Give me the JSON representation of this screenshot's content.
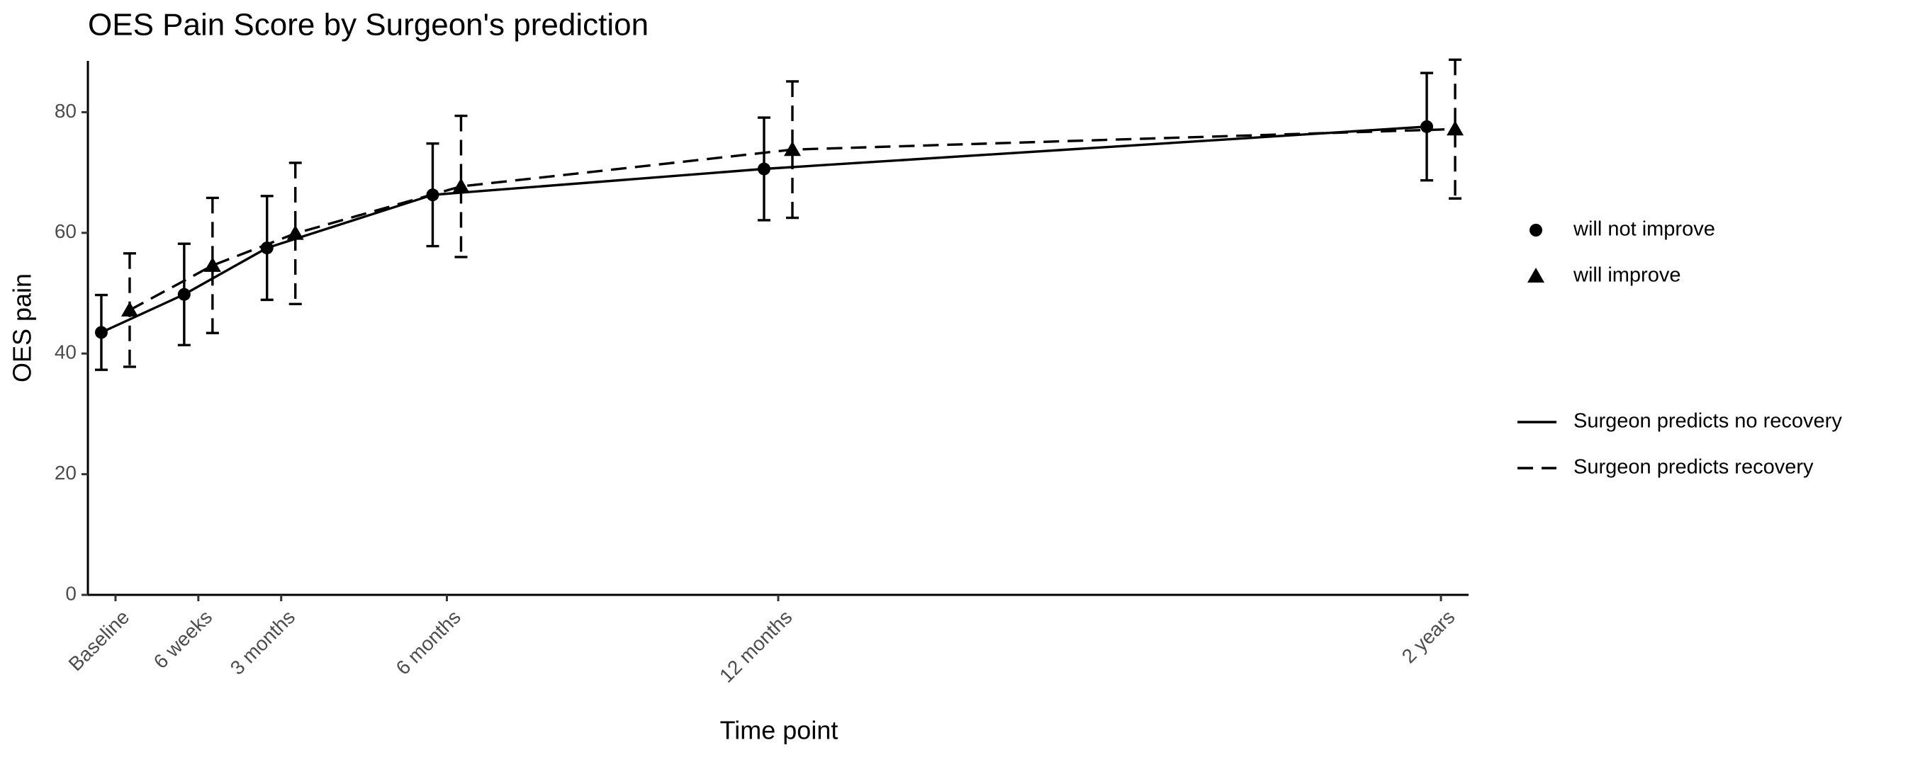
{
  "chart_data": {
    "type": "line_errorbar",
    "title": "OES Pain Score by Surgeon's prediction",
    "x_label": "Time point",
    "y_label": "OES pain",
    "x": [
      0,
      1.5,
      3,
      6,
      12,
      24
    ],
    "xlim": [
      -0.5,
      24.5
    ],
    "xticks": [
      {
        "value": 0,
        "label": "Baseline"
      },
      {
        "value": 1.5,
        "label": "6 weeks"
      },
      {
        "value": 3,
        "label": "3 months"
      },
      {
        "value": 6,
        "label": "6 months"
      },
      {
        "value": 12,
        "label": "12 months"
      },
      {
        "value": 24,
        "label": "2 years"
      }
    ],
    "ylim": [
      0,
      88.5
    ],
    "yticks": [
      0,
      20,
      40,
      60,
      80
    ],
    "grid": false,
    "legend": "right",
    "series": [
      {
        "name": "will not improve",
        "line_label": "Surgeon predicts no recovery",
        "marker": "circle",
        "dash": "solid",
        "color": "#000000",
        "values": [
          43.5,
          49.8,
          57.5,
          66.3,
          70.6,
          77.6
        ],
        "errors": [
          6.2,
          8.4,
          8.6,
          8.5,
          8.5,
          8.9
        ]
      },
      {
        "name": "will improve",
        "line_label": "Surgeon predicts recovery",
        "marker": "triangle",
        "dash": "dashed",
        "color": "#000000",
        "values": [
          47.2,
          54.6,
          59.9,
          67.7,
          73.8,
          77.2
        ],
        "errors": [
          9.4,
          11.2,
          11.7,
          11.7,
          11.3,
          11.5
        ]
      }
    ]
  }
}
